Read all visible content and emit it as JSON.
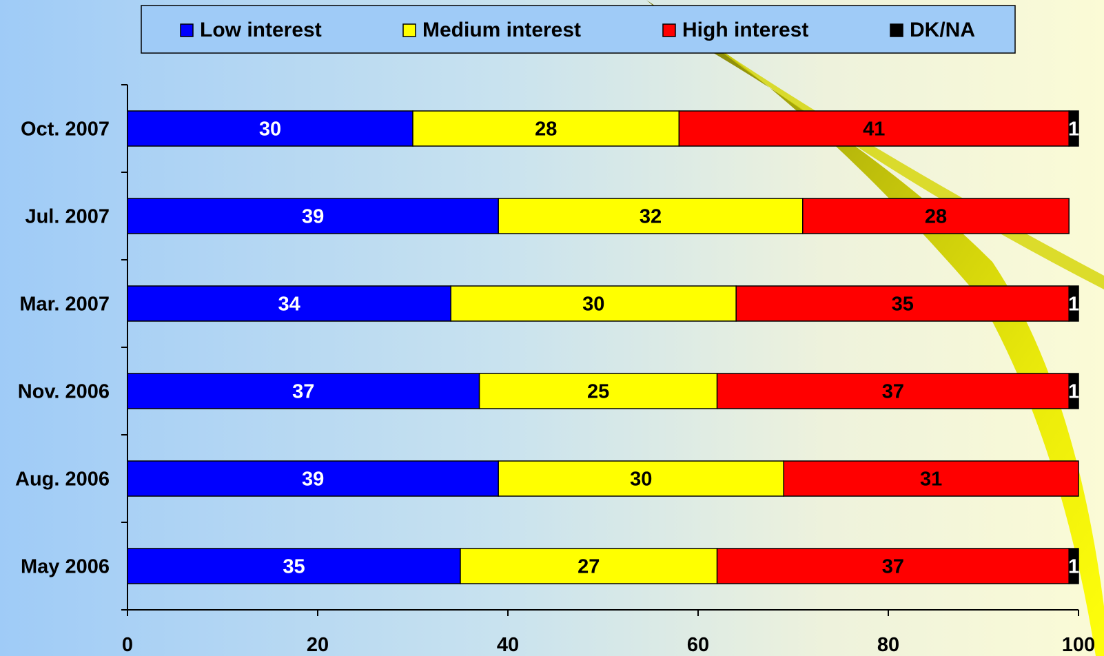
{
  "chart_data": {
    "type": "bar",
    "orientation": "horizontal",
    "stacked": true,
    "title": "",
    "xlabel": "",
    "ylabel": "",
    "categories": [
      "Oct. 2007",
      "Jul. 2007",
      "Mar. 2007",
      "Nov. 2006",
      "Aug. 2006",
      "May 2006"
    ],
    "series": [
      {
        "name": "Low interest",
        "color": "#0000ff",
        "label_color": "#ffffff",
        "values": [
          30,
          39,
          34,
          37,
          39,
          35
        ]
      },
      {
        "name": "Medium interest",
        "color": "#ffff00",
        "label_color": "#000000",
        "values": [
          28,
          32,
          30,
          25,
          30,
          27
        ]
      },
      {
        "name": "High interest",
        "color": "#ff0000",
        "label_color": "#000000",
        "values": [
          41,
          28,
          35,
          37,
          31,
          37
        ]
      },
      {
        "name": "DK/NA",
        "color": "#000000",
        "label_color": "#ffffff",
        "values": [
          1,
          null,
          1,
          1,
          null,
          1
        ]
      }
    ],
    "xlim": [
      0,
      100
    ],
    "xticks": [
      "0",
      "20",
      "40",
      "60",
      "80",
      "100"
    ],
    "grid": false,
    "legend_position": "top"
  }
}
